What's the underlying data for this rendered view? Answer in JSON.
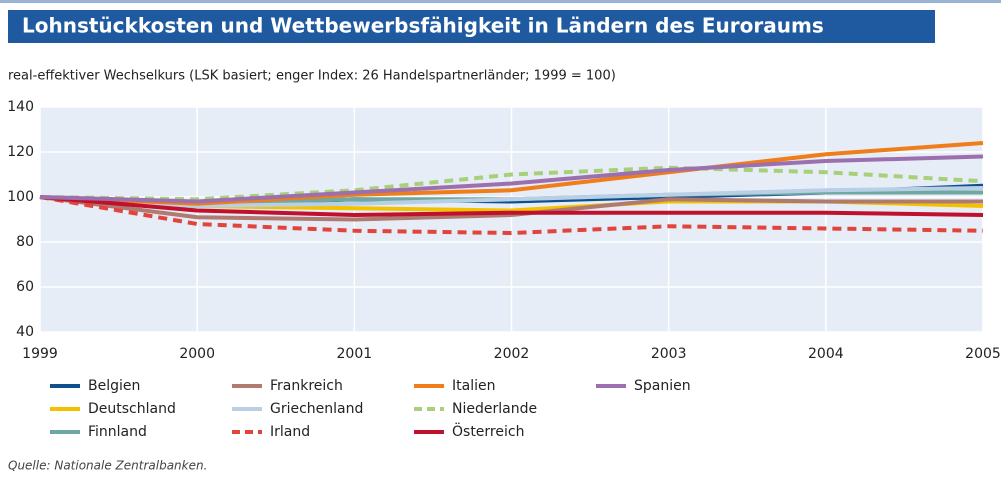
{
  "chart_data": {
    "type": "line",
    "title": "Lohnstückkosten und Wettbewerbsfähigkeit in Ländern des Euroraums",
    "subtitle": "real-effektiver Wechselkurs (LSK basiert; enger Index: 26 Handelspartnerländer; 1999 = 100)",
    "source": "Quelle: Nationale Zentralbanken.",
    "x": [
      1999,
      2000,
      2001,
      2002,
      2003,
      2004,
      2005
    ],
    "xlim": [
      1999,
      2005
    ],
    "xticks": [
      1999,
      2000,
      2001,
      2002,
      2003,
      2004,
      2005
    ],
    "ylim": [
      40,
      140
    ],
    "yticks": [
      40,
      60,
      80,
      100,
      120,
      140
    ],
    "grid": true,
    "series": [
      {
        "name": "Belgien",
        "color": "#0e4f8e",
        "style": "solid",
        "values": [
          100,
          96,
          99,
          98,
          100,
          102,
          105
        ]
      },
      {
        "name": "Deutschland",
        "color": "#f2c200",
        "style": "solid",
        "values": [
          100,
          96,
          95,
          94,
          98,
          98,
          96
        ]
      },
      {
        "name": "Finnland",
        "color": "#6fa8a0",
        "style": "solid",
        "values": [
          100,
          97,
          99,
          99,
          101,
          102,
          102
        ]
      },
      {
        "name": "Frankreich",
        "color": "#b07a70",
        "style": "solid",
        "values": [
          100,
          91,
          90,
          92,
          99,
          98,
          98
        ]
      },
      {
        "name": "Griechenland",
        "color": "#b8cfe6",
        "style": "solid",
        "values": [
          100,
          96,
          97,
          99,
          101,
          103,
          104
        ]
      },
      {
        "name": "Irland",
        "color": "#e0443c",
        "style": "dashed",
        "values": [
          100,
          88,
          85,
          84,
          87,
          86,
          85
        ]
      },
      {
        "name": "Italien",
        "color": "#ef7d1a",
        "style": "solid",
        "values": [
          100,
          97,
          101,
          103,
          111,
          119,
          124
        ]
      },
      {
        "name": "Niederlande",
        "color": "#a8cf7a",
        "style": "dashed",
        "values": [
          100,
          99,
          103,
          110,
          113,
          111,
          107
        ]
      },
      {
        "name": "Österreich",
        "color": "#c0102e",
        "style": "solid",
        "values": [
          100,
          94,
          92,
          93,
          93,
          93,
          92
        ]
      },
      {
        "name": "Spanien",
        "color": "#9c6fae",
        "style": "solid",
        "values": [
          100,
          98,
          102,
          106,
          112,
          116,
          118
        ]
      }
    ]
  }
}
